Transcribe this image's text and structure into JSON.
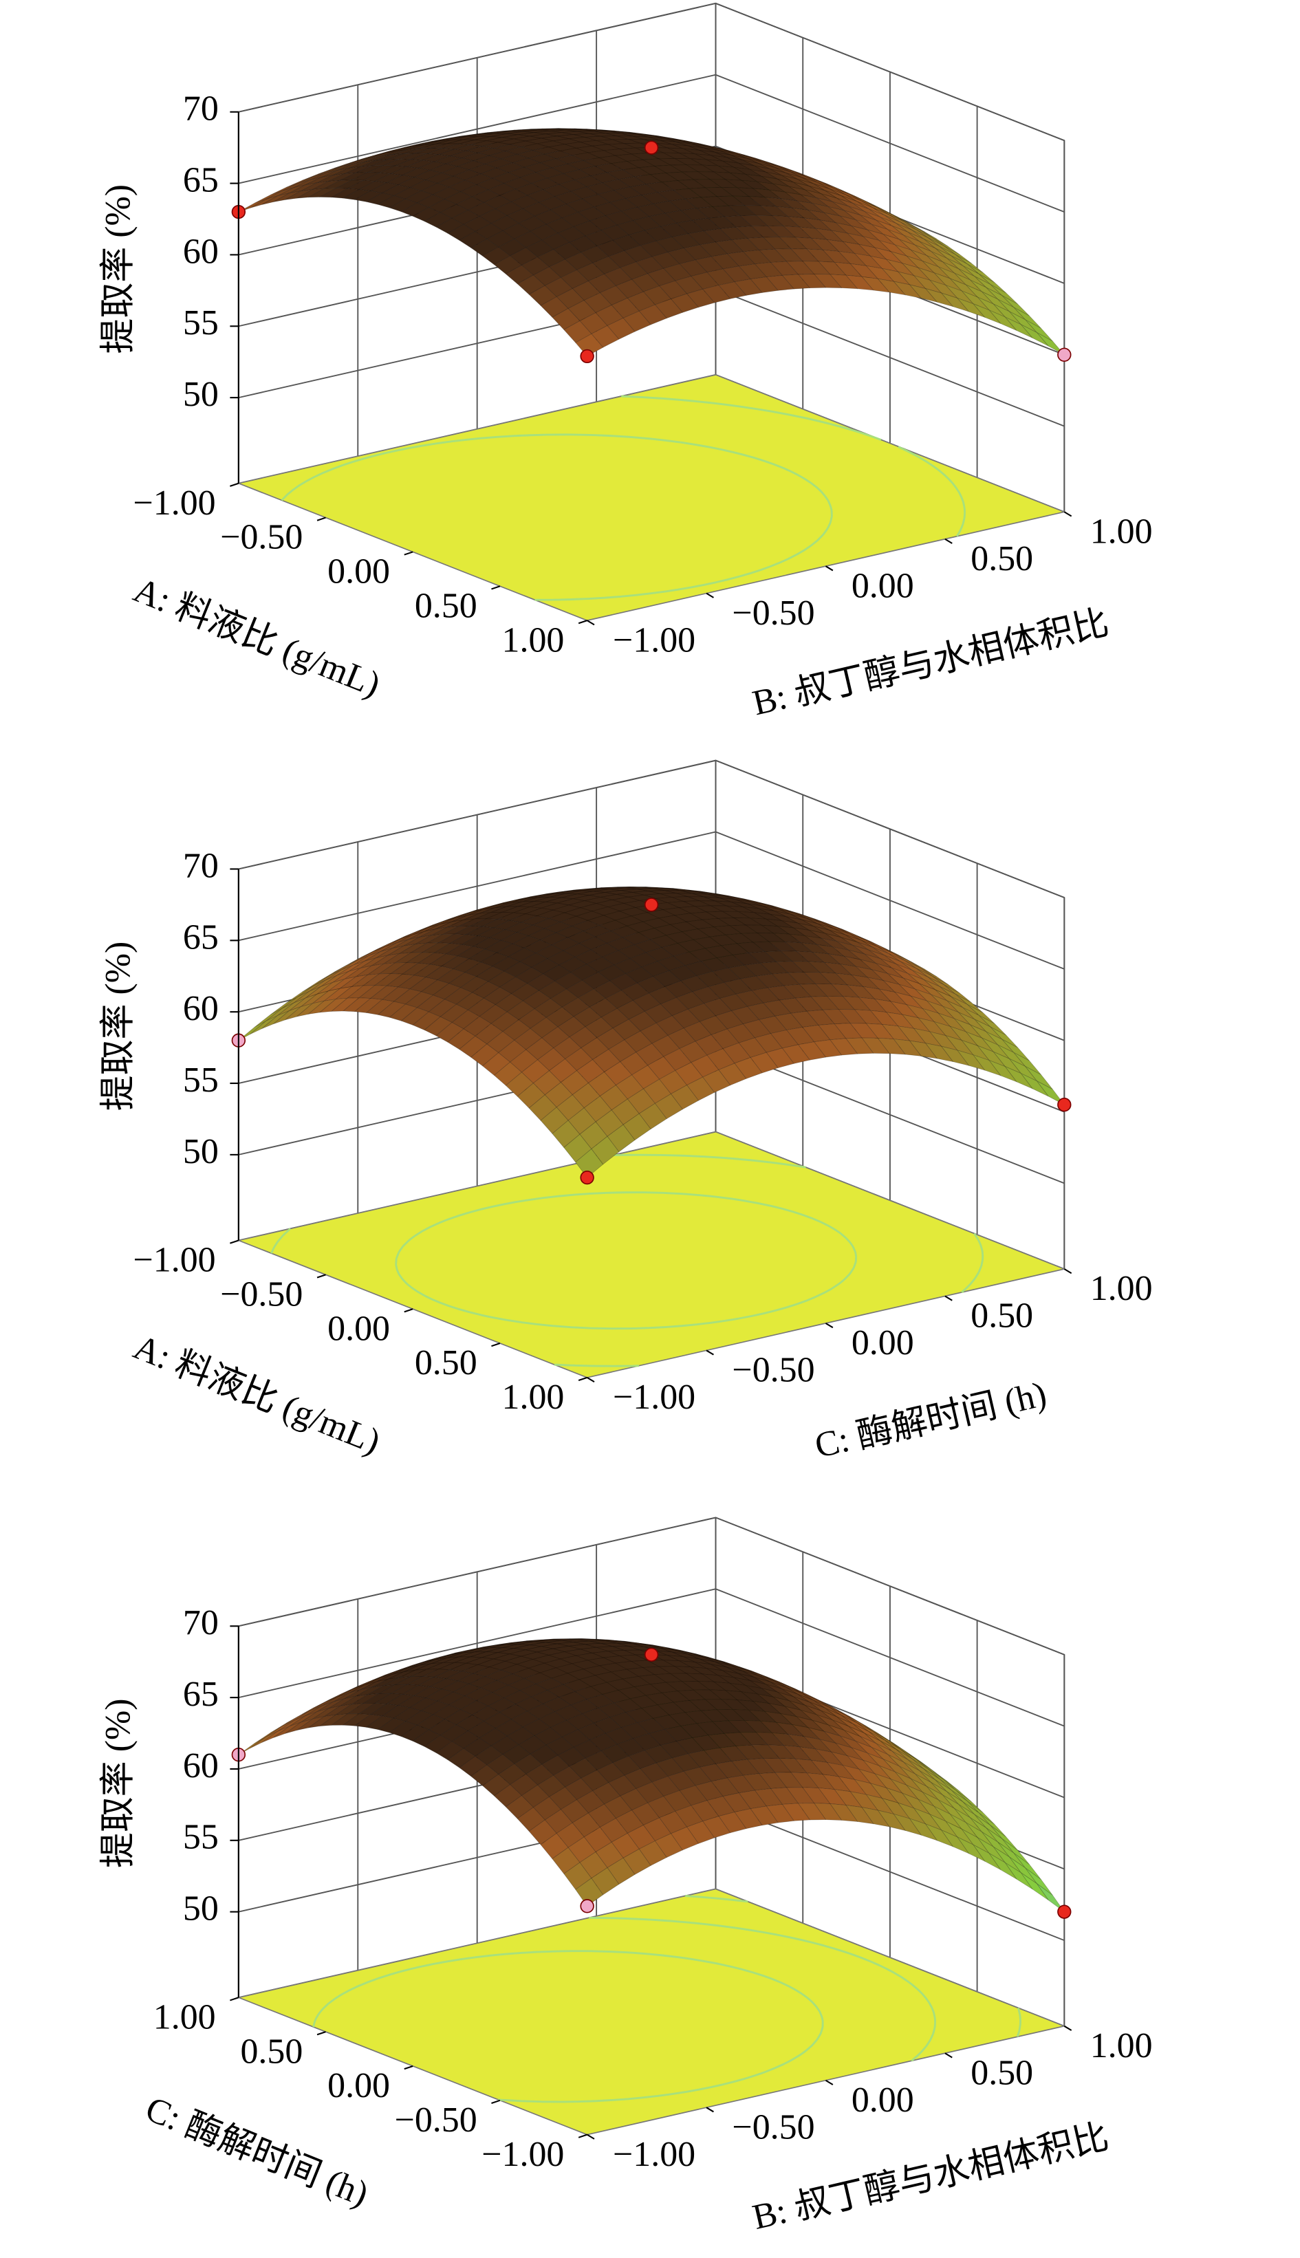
{
  "chart_data": [
    {
      "type": "surface3d",
      "x_label": "A: 料液比 (g/mL)",
      "y_label": "B: 叔丁醇与水相体积比",
      "z_label": "提取率 (%)",
      "xlim": [
        -1,
        1
      ],
      "ylim": [
        -1,
        1
      ],
      "zlim": [
        44,
        70
      ],
      "x_reversed": false,
      "xticks": [
        {
          "value": -1,
          "label": "−1.00"
        },
        {
          "value": -0.5,
          "label": "−0.50"
        },
        {
          "value": 0,
          "label": "0.00"
        },
        {
          "value": 0.5,
          "label": "0.50"
        },
        {
          "value": 1,
          "label": "1.00"
        }
      ],
      "yticks": [
        {
          "value": -1,
          "label": "−1.00"
        },
        {
          "value": -0.5,
          "label": "−0.50"
        },
        {
          "value": 0,
          "label": "0.00"
        },
        {
          "value": 0.5,
          "label": "0.50"
        },
        {
          "value": 1,
          "label": "1.00"
        }
      ],
      "zticks": [
        50,
        55,
        60,
        65,
        70
      ],
      "points": [
        {
          "x": -1,
          "y": -1,
          "z": 63,
          "color": "#e8281e"
        },
        {
          "x": 1,
          "y": -1,
          "z": 62.5,
          "color": "#e8281e"
        },
        {
          "x": 1,
          "y": 1,
          "z": 55,
          "color": "#f0a8c8"
        },
        {
          "x": 0,
          "y": 0,
          "z": 68.5,
          "color": "#e8281e"
        }
      ]
    },
    {
      "type": "surface3d",
      "x_label": "A: 料液比 (g/mL)",
      "y_label": "C: 酶解时间 (h)",
      "z_label": "提取率 (%)",
      "xlim": [
        -1,
        1
      ],
      "ylim": [
        -1,
        1
      ],
      "zlim": [
        44,
        70
      ],
      "x_reversed": false,
      "xticks": [
        {
          "value": -1,
          "label": "−1.00"
        },
        {
          "value": -0.5,
          "label": "−0.50"
        },
        {
          "value": 0,
          "label": "0.00"
        },
        {
          "value": 0.5,
          "label": "0.50"
        },
        {
          "value": 1,
          "label": "1.00"
        }
      ],
      "yticks": [
        {
          "value": -1,
          "label": "−1.00"
        },
        {
          "value": -0.5,
          "label": "−0.50"
        },
        {
          "value": 0,
          "label": "0.00"
        },
        {
          "value": 0.5,
          "label": "0.50"
        },
        {
          "value": 1,
          "label": "1.00"
        }
      ],
      "zticks": [
        50,
        55,
        60,
        65,
        70
      ],
      "points": [
        {
          "x": -1,
          "y": -1,
          "z": 58,
          "color": "#f0a8c8"
        },
        {
          "x": 1,
          "y": -1,
          "z": 58,
          "color": "#e8281e"
        },
        {
          "x": 1,
          "y": 1,
          "z": 55.5,
          "color": "#e8281e"
        },
        {
          "x": 0,
          "y": 0,
          "z": 68.5,
          "color": "#e8281e"
        }
      ]
    },
    {
      "type": "surface3d",
      "x_label": "C: 酶解时间 (h)",
      "y_label": "B: 叔丁醇与水相体积比",
      "z_label": "提取率 (%)",
      "xlim": [
        -1,
        1
      ],
      "ylim": [
        -1,
        1
      ],
      "zlim": [
        44,
        70
      ],
      "x_reversed": true,
      "xticks": [
        {
          "value": -1,
          "label": "−1.00"
        },
        {
          "value": -0.5,
          "label": "−0.50"
        },
        {
          "value": 0,
          "label": "0.00"
        },
        {
          "value": 0.5,
          "label": "0.50"
        },
        {
          "value": 1,
          "label": "1.00"
        }
      ],
      "yticks": [
        {
          "value": -1,
          "label": "−1.00"
        },
        {
          "value": -0.5,
          "label": "−0.50"
        },
        {
          "value": 0,
          "label": "0.00"
        },
        {
          "value": 0.5,
          "label": "0.50"
        },
        {
          "value": 1,
          "label": "1.00"
        }
      ],
      "zticks": [
        50,
        55,
        60,
        65,
        70
      ],
      "points": [
        {
          "x": 1,
          "y": -1,
          "z": 61,
          "color": "#f0a8c8"
        },
        {
          "x": -1,
          "y": -1,
          "z": 60,
          "color": "#f0a8c8"
        },
        {
          "x": -1,
          "y": 1,
          "z": 52,
          "color": "#e8281e"
        },
        {
          "x": 0,
          "y": 0,
          "z": 69,
          "color": "#e8281e"
        }
      ]
    }
  ]
}
